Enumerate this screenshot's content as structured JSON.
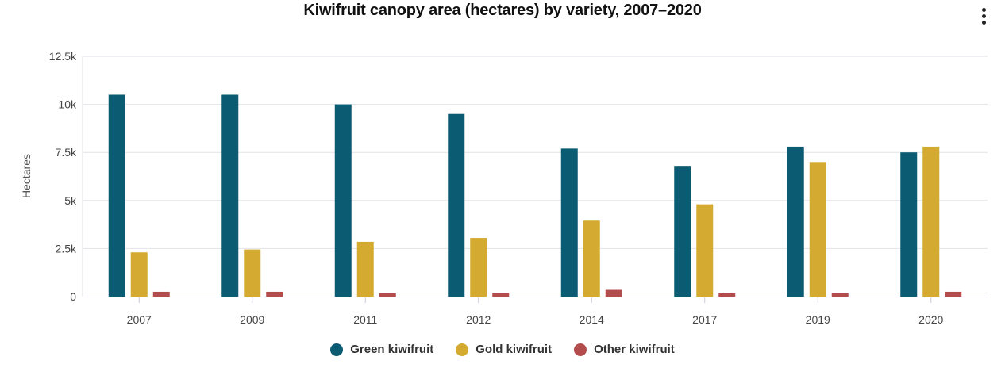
{
  "chart_data": {
    "type": "bar",
    "title": "Kiwifruit canopy area (hectares) by variety, 2007–2020",
    "xlabel": "",
    "ylabel": "Hectares",
    "categories": [
      "2007",
      "2009",
      "2011",
      "2012",
      "2014",
      "2017",
      "2019",
      "2020"
    ],
    "series": [
      {
        "name": "Green kiwifruit",
        "color": "#0b5c73",
        "values": [
          10500,
          10500,
          10000,
          9500,
          7700,
          6800,
          7800,
          7500
        ]
      },
      {
        "name": "Gold kiwifruit",
        "color": "#d4ab30",
        "values": [
          2300,
          2450,
          2850,
          3050,
          3950,
          4800,
          7000,
          7800
        ]
      },
      {
        "name": "Other kiwifruit",
        "color": "#b34c4c",
        "values": [
          250,
          250,
          200,
          200,
          350,
          200,
          200,
          250
        ]
      }
    ],
    "ylim": [
      0,
      12500
    ],
    "yticks": [
      {
        "value": 0,
        "label": "0"
      },
      {
        "value": 2500,
        "label": "2.5k"
      },
      {
        "value": 5000,
        "label": "5k"
      },
      {
        "value": 7500,
        "label": "7.5k"
      },
      {
        "value": 10000,
        "label": "10k"
      },
      {
        "value": 12500,
        "label": "12.5k"
      }
    ],
    "grid": true,
    "legend_position": "bottom-center"
  },
  "menu": {
    "icon": "kebab-menu-icon"
  }
}
